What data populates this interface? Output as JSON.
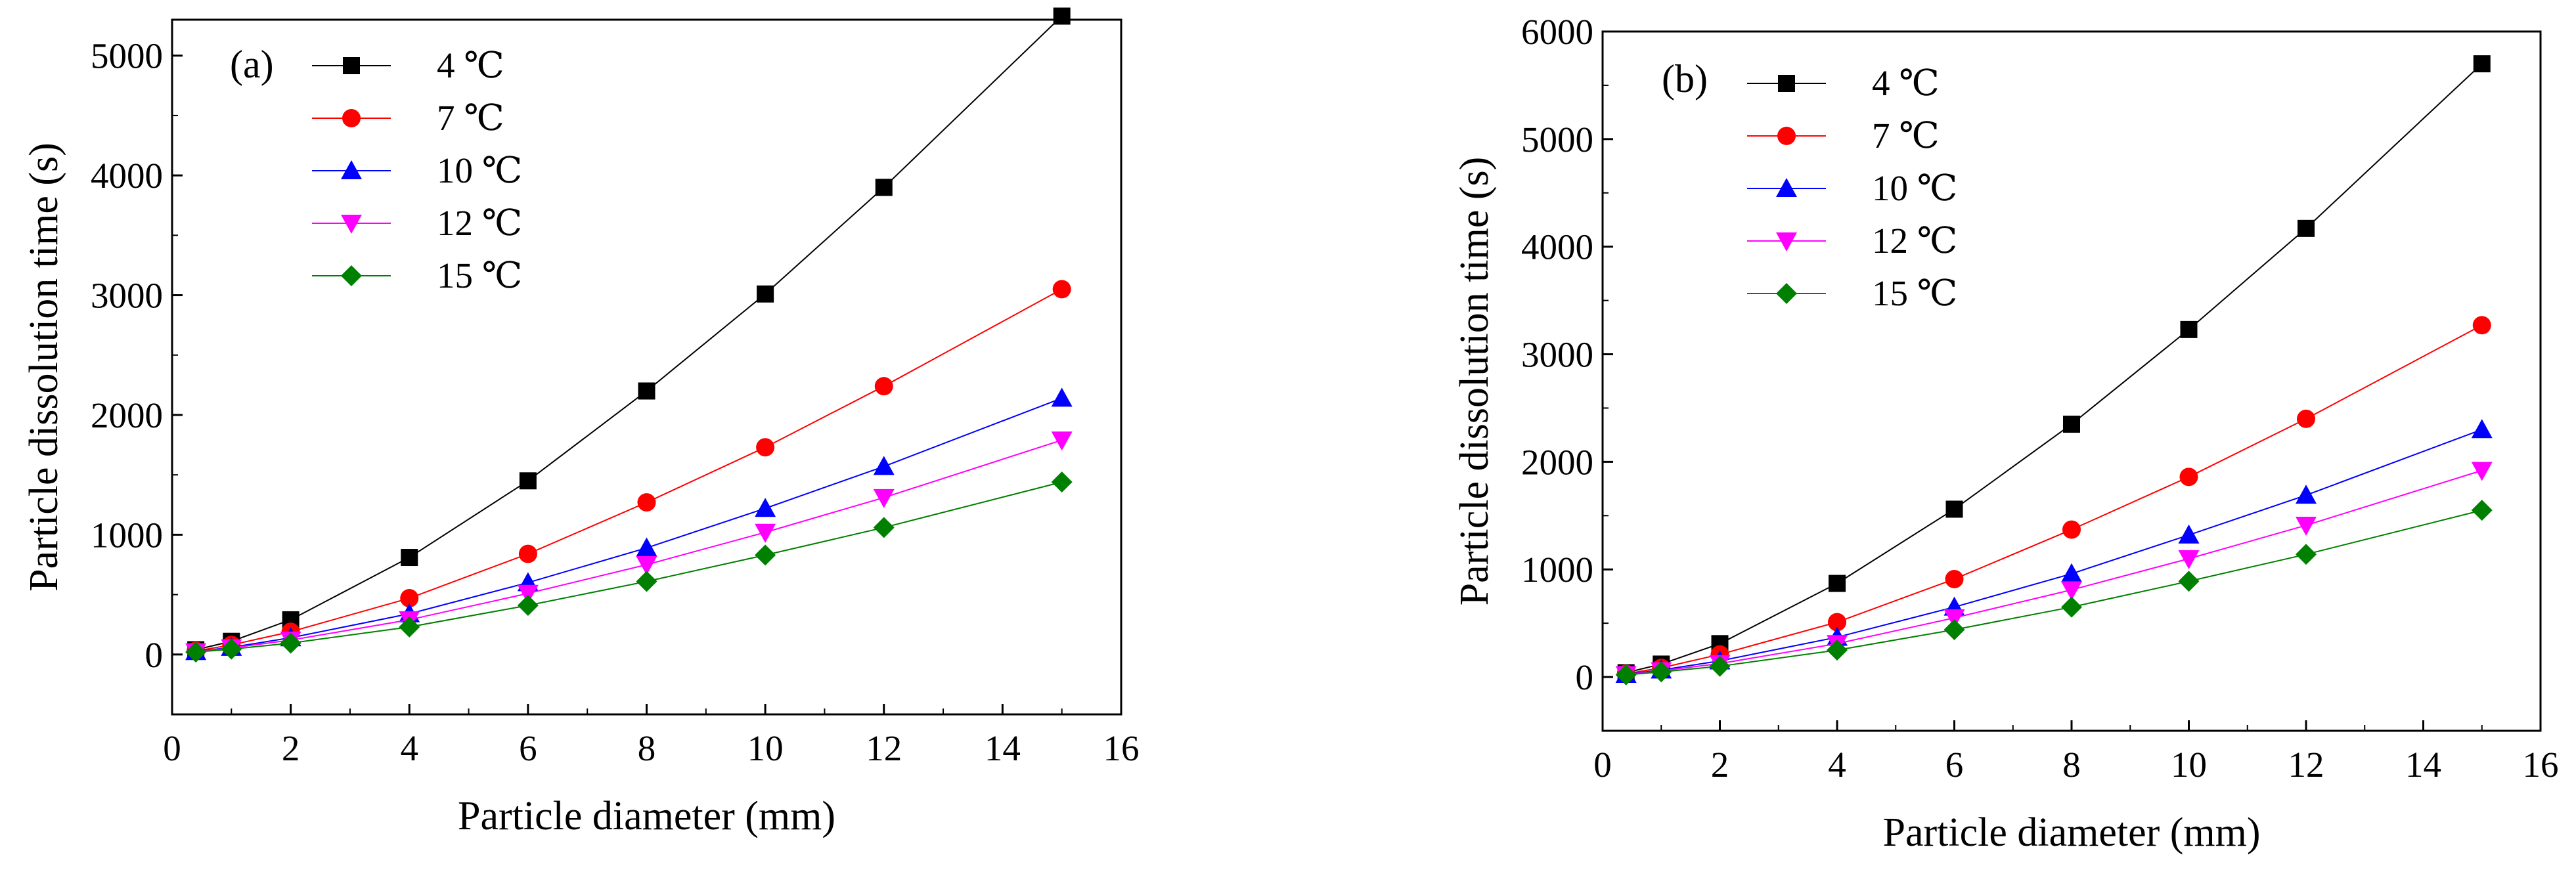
{
  "chart_data": [
    {
      "type": "line",
      "panel_label": "(a)",
      "xlabel": "Particle diameter (mm)",
      "ylabel": "Particle dissolution time (s)",
      "xlim": [
        0,
        16
      ],
      "ylim": [
        -500,
        5300
      ],
      "xticks": [
        0,
        2,
        4,
        6,
        8,
        10,
        12,
        14,
        16
      ],
      "yticks": [
        0,
        1000,
        2000,
        3000,
        4000,
        5000
      ],
      "legend_position": "top-left",
      "x": [
        0.4,
        1,
        2,
        4,
        6,
        8,
        10,
        12,
        15
      ],
      "series": [
        {
          "name": "4 ℃",
          "color": "#000000",
          "marker": "square",
          "values": [
            40,
            110,
            290,
            810,
            1450,
            2200,
            3010,
            3900,
            5330
          ]
        },
        {
          "name": "7 ℃",
          "color": "#ff0000",
          "marker": "circle",
          "values": [
            30,
            80,
            190,
            470,
            840,
            1270,
            1730,
            2240,
            3050
          ]
        },
        {
          "name": "10 ℃",
          "color": "#0000ff",
          "marker": "triangle-up",
          "values": [
            25,
            60,
            140,
            340,
            600,
            890,
            1220,
            1570,
            2140
          ]
        },
        {
          "name": "12 ℃",
          "color": "#ff00ff",
          "marker": "triangle-down",
          "values": [
            22,
            55,
            120,
            290,
            510,
            750,
            1020,
            1310,
            1790
          ]
        },
        {
          "name": "15 ℃",
          "color": "#008000",
          "marker": "diamond",
          "values": [
            20,
            45,
            95,
            230,
            410,
            610,
            830,
            1060,
            1440
          ]
        }
      ]
    },
    {
      "type": "line",
      "panel_label": "(b)",
      "xlabel": "Particle diameter (mm)",
      "ylabel": "Particle dissolution time (s)",
      "xlim": [
        0,
        16
      ],
      "ylim": [
        -500,
        6000
      ],
      "xticks": [
        0,
        2,
        4,
        6,
        8,
        10,
        12,
        14,
        16
      ],
      "yticks": [
        0,
        1000,
        2000,
        3000,
        4000,
        5000,
        6000
      ],
      "legend_position": "top-left",
      "x": [
        0.4,
        1,
        2,
        4,
        6,
        8,
        10,
        12,
        15
      ],
      "series": [
        {
          "name": "4 ℃",
          "color": "#000000",
          "marker": "square",
          "values": [
            40,
            120,
            310,
            870,
            1560,
            2350,
            3230,
            4170,
            5700
          ]
        },
        {
          "name": "7 ℃",
          "color": "#ff0000",
          "marker": "circle",
          "values": [
            30,
            85,
            210,
            510,
            910,
            1370,
            1860,
            2400,
            3270
          ]
        },
        {
          "name": "10 ℃",
          "color": "#0000ff",
          "marker": "triangle-up",
          "values": [
            25,
            65,
            150,
            370,
            650,
            960,
            1320,
            1690,
            2300
          ]
        },
        {
          "name": "12 ℃",
          "color": "#ff00ff",
          "marker": "triangle-down",
          "values": [
            22,
            58,
            125,
            310,
            550,
            810,
            1100,
            1410,
            1920
          ]
        },
        {
          "name": "15 ℃",
          "color": "#008000",
          "marker": "diamond",
          "values": [
            20,
            48,
            100,
            250,
            440,
            650,
            890,
            1140,
            1550
          ]
        }
      ]
    }
  ]
}
